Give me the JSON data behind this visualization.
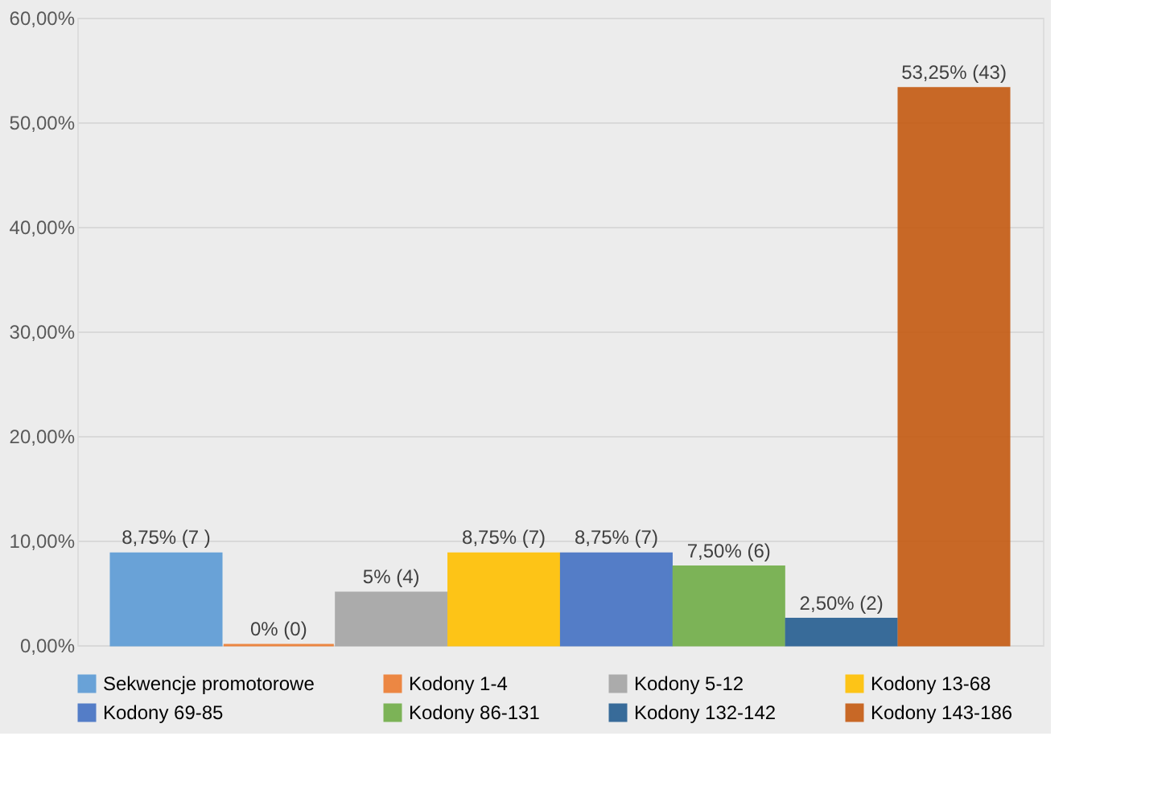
{
  "chart_data": {
    "type": "bar",
    "categories": [
      null
    ],
    "ylim": [
      0,
      60
    ],
    "yticks": [
      {
        "value": 0,
        "label": "0,00%"
      },
      {
        "value": 10,
        "label": "10,00%"
      },
      {
        "value": 20,
        "label": "20,00%"
      },
      {
        "value": 30,
        "label": "30,00%"
      },
      {
        "value": 40,
        "label": "40,00%"
      },
      {
        "value": 50,
        "label": "50,00%"
      },
      {
        "value": 60,
        "label": "60,00%"
      }
    ],
    "grid": "y",
    "legend": "bottom",
    "series": [
      {
        "name": "Sekwencje promotorowe",
        "color": "#5b9bd5",
        "values": [
          8.75
        ],
        "value_labels": [
          "8,75% (7 )"
        ]
      },
      {
        "name": "Kodony 1-4",
        "color": "#ed7d31",
        "values": [
          0
        ],
        "value_labels": [
          "0% (0)"
        ]
      },
      {
        "name": "Kodony 5-12",
        "color": "#a5a5a5",
        "values": [
          5
        ],
        "value_labels": [
          "5% (4)"
        ]
      },
      {
        "name": "Kodony 13-68",
        "color": "#ffc000",
        "values": [
          8.75
        ],
        "value_labels": [
          "8,75% (7)"
        ]
      },
      {
        "name": "Kodony 69-85",
        "color": "#4472c4",
        "values": [
          8.75
        ],
        "value_labels": [
          "8,75% (7)"
        ]
      },
      {
        "name": "Kodony 86-131",
        "color": "#70ad47",
        "values": [
          7.5
        ],
        "value_labels": [
          "7,50% (6)"
        ]
      },
      {
        "name": "Kodony 132-142",
        "color": "#255e91",
        "values": [
          2.5
        ],
        "value_labels": [
          "2,50% (2)"
        ]
      },
      {
        "name": "Kodony 143-186",
        "color": "#c55a11",
        "values": [
          53.25
        ],
        "value_labels": [
          "53,25% (43)"
        ]
      }
    ]
  }
}
